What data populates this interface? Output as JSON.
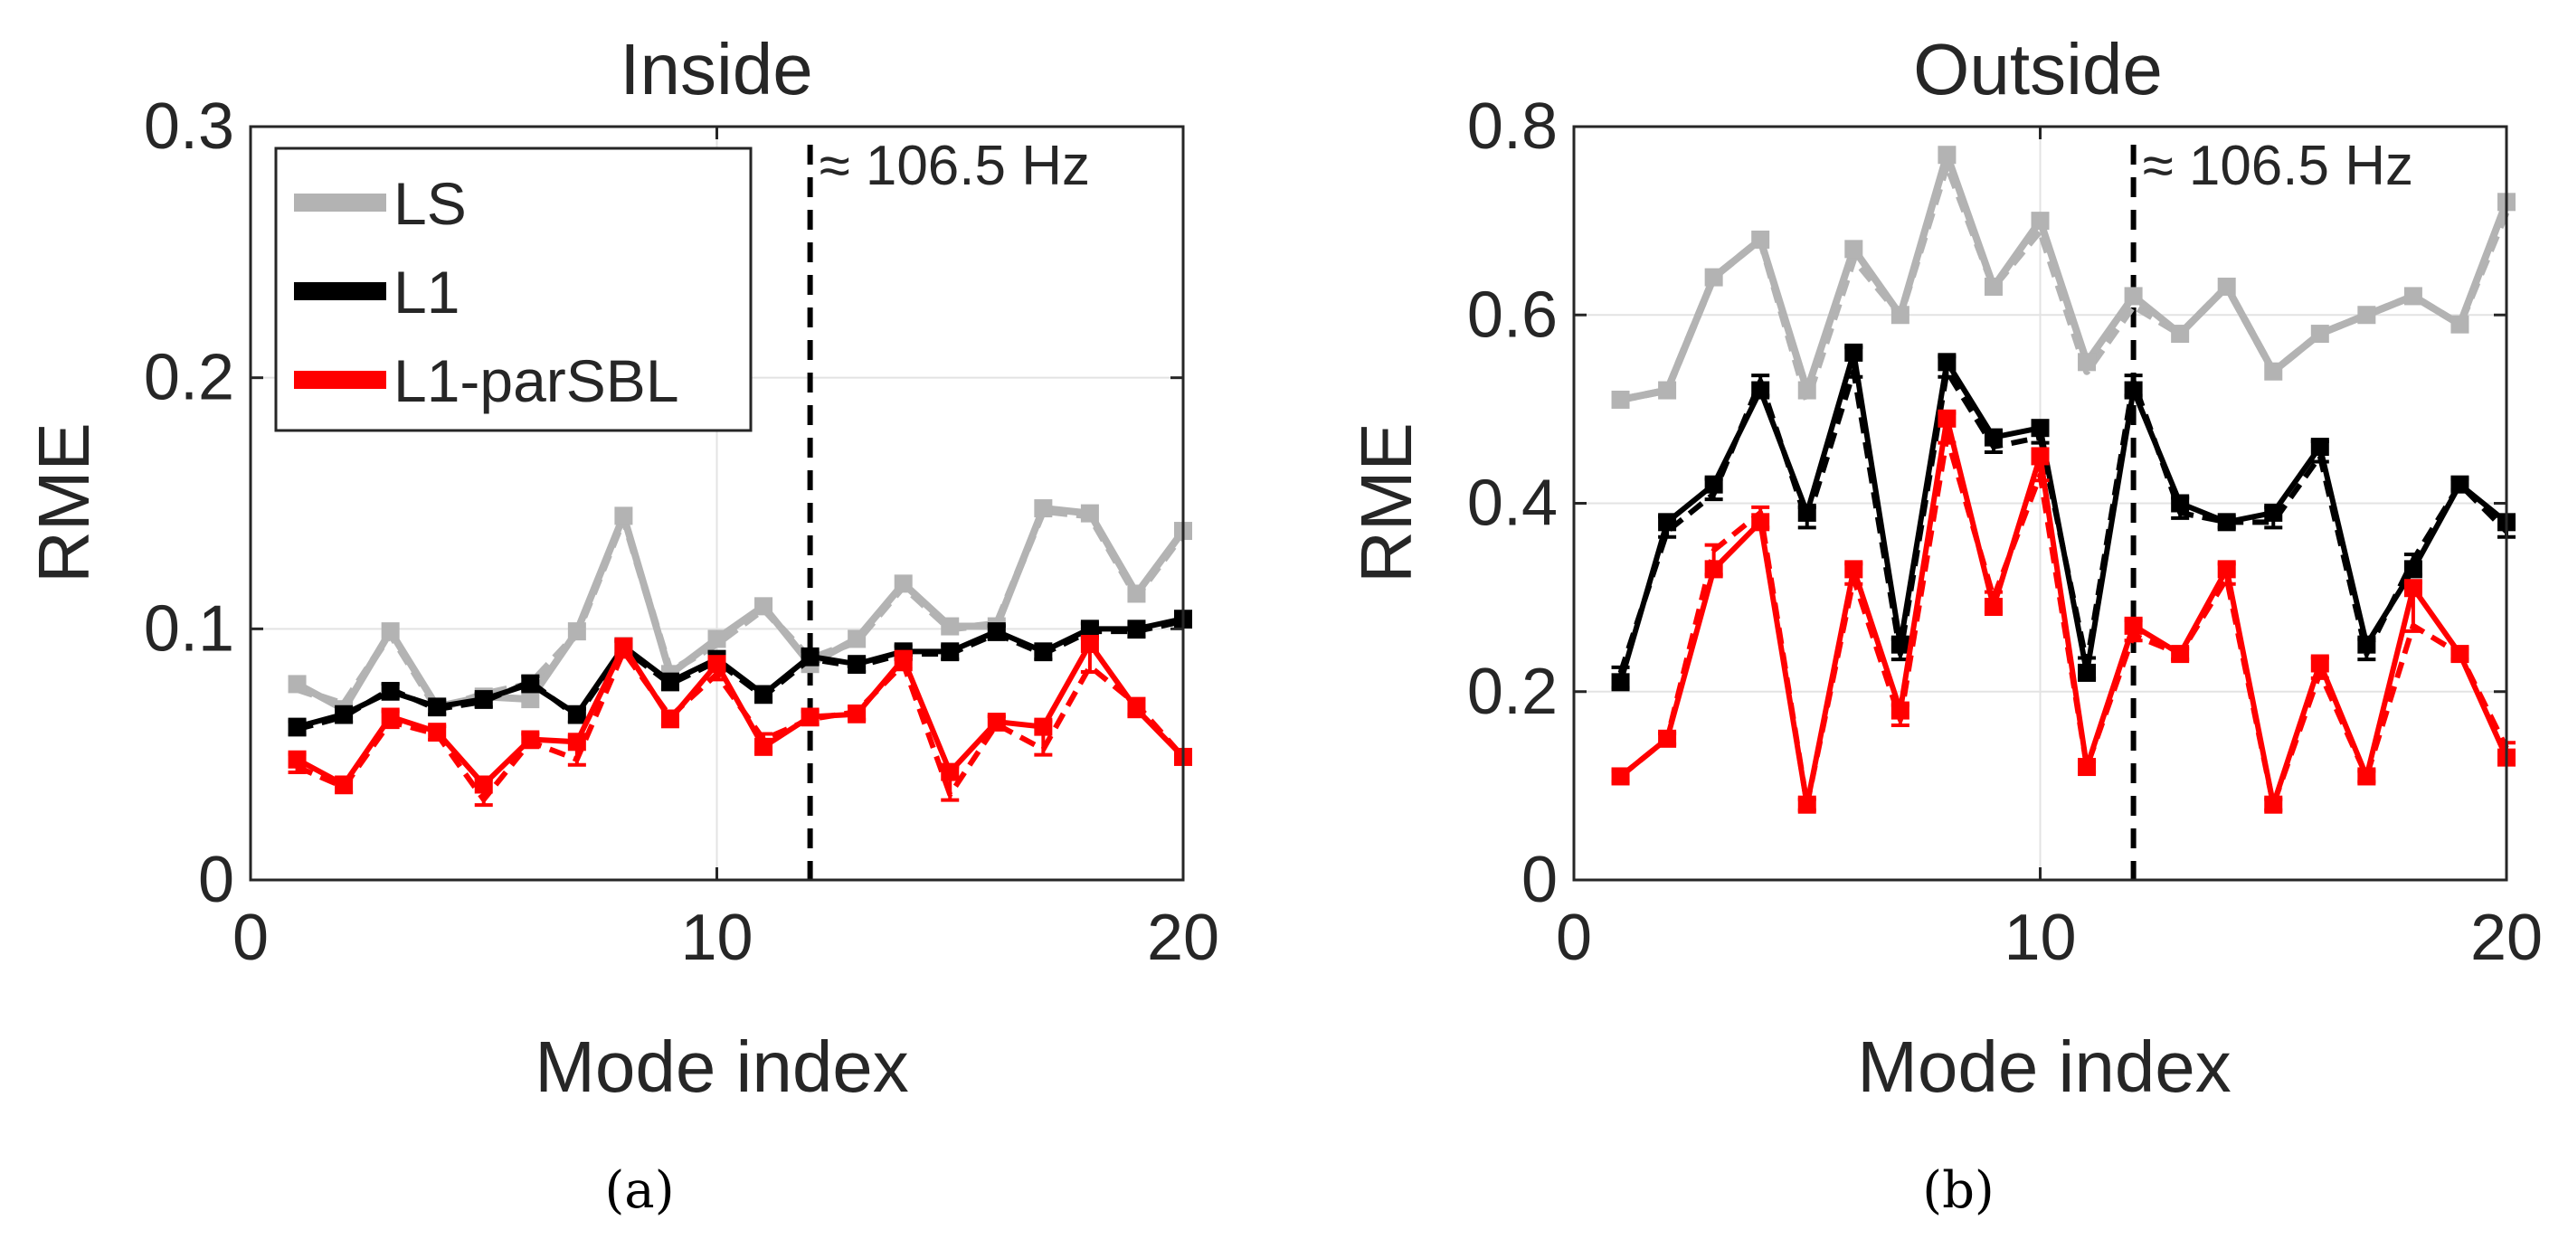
{
  "chart_data": [
    {
      "type": "line",
      "title": "Inside",
      "xlabel": "Mode index",
      "ylabel": "RME",
      "xlim": [
        0,
        20
      ],
      "ylim": [
        0,
        0.3
      ],
      "xticks": [
        0,
        10,
        20
      ],
      "xtick_labels": [
        "0",
        "10",
        "20"
      ],
      "yticks": [
        0,
        0.1,
        0.2,
        0.3
      ],
      "ytick_labels": [
        "0",
        "0.1",
        "0.2",
        "0.3"
      ],
      "grid": true,
      "legend": {
        "placement": "top-left",
        "entries": [
          "LS",
          "L1",
          "L1-parSBL"
        ]
      },
      "annotation": {
        "x": 12,
        "text": "≈ 106.5 Hz"
      },
      "caption": "(a)",
      "x": [
        1,
        2,
        3,
        4,
        5,
        6,
        7,
        8,
        9,
        10,
        11,
        12,
        13,
        14,
        15,
        16,
        17,
        18,
        19,
        20
      ],
      "series": [
        {
          "name": "LS",
          "color": "#b3b3b3",
          "values": [
            0.078,
            0.068,
            0.099,
            0.069,
            0.073,
            0.072,
            0.099,
            0.145,
            0.082,
            0.096,
            0.109,
            0.086,
            0.096,
            0.118,
            0.101,
            0.101,
            0.148,
            0.146,
            0.114,
            0.139
          ],
          "dashed_values": [
            0.076,
            0.07,
            0.098,
            0.068,
            0.074,
            0.078,
            0.098,
            0.144,
            0.083,
            0.094,
            0.108,
            0.088,
            0.095,
            0.117,
            0.1,
            0.102,
            0.147,
            0.145,
            0.113,
            0.138
          ]
        },
        {
          "name": "L1",
          "color": "#000000",
          "values": [
            0.061,
            0.066,
            0.075,
            0.069,
            0.072,
            0.078,
            0.066,
            0.093,
            0.079,
            0.088,
            0.074,
            0.089,
            0.086,
            0.091,
            0.091,
            0.099,
            0.091,
            0.1,
            0.1,
            0.104
          ],
          "dashed_values": [
            0.06,
            0.065,
            0.076,
            0.068,
            0.071,
            0.079,
            0.065,
            0.092,
            0.078,
            0.087,
            0.073,
            0.088,
            0.085,
            0.09,
            0.09,
            0.098,
            0.09,
            0.099,
            0.099,
            0.103
          ]
        },
        {
          "name": "L1-parSBL",
          "color": "#ff0000",
          "values": [
            0.048,
            0.038,
            0.065,
            0.059,
            0.038,
            0.056,
            0.055,
            0.093,
            0.064,
            0.086,
            0.053,
            0.065,
            0.066,
            0.088,
            0.043,
            0.063,
            0.061,
            0.094,
            0.068,
            0.049
          ],
          "dashed_values": [
            0.045,
            0.037,
            0.063,
            0.058,
            0.032,
            0.055,
            0.048,
            0.091,
            0.065,
            0.082,
            0.056,
            0.064,
            0.067,
            0.086,
            0.034,
            0.062,
            0.052,
            0.085,
            0.07,
            0.049
          ]
        }
      ]
    },
    {
      "type": "line",
      "title": "Outside",
      "xlabel": "Mode index",
      "ylabel": "RME",
      "xlim": [
        0,
        20
      ],
      "ylim": [
        0,
        0.8
      ],
      "xticks": [
        0,
        10,
        20
      ],
      "xtick_labels": [
        "0",
        "10",
        "20"
      ],
      "yticks": [
        0,
        0.2,
        0.4,
        0.6,
        0.8
      ],
      "ytick_labels": [
        "0",
        "0.2",
        "0.4",
        "0.6",
        "0.8"
      ],
      "grid": true,
      "legend": null,
      "annotation": {
        "x": 12,
        "text": "≈ 106.5 Hz"
      },
      "caption": "(b)",
      "x": [
        1,
        2,
        3,
        4,
        5,
        6,
        7,
        8,
        9,
        10,
        11,
        12,
        13,
        14,
        15,
        16,
        17,
        18,
        19,
        20
      ],
      "series": [
        {
          "name": "LS",
          "color": "#b3b3b3",
          "values": [
            0.51,
            0.52,
            0.64,
            0.68,
            0.52,
            0.67,
            0.6,
            0.77,
            0.63,
            0.7,
            0.55,
            0.62,
            0.58,
            0.63,
            0.54,
            0.58,
            0.6,
            0.62,
            0.59,
            0.72
          ],
          "dashed_values": [
            0.51,
            0.52,
            0.64,
            0.68,
            0.51,
            0.66,
            0.6,
            0.76,
            0.63,
            0.69,
            0.54,
            0.61,
            0.58,
            0.63,
            0.54,
            0.58,
            0.6,
            0.62,
            0.59,
            0.71
          ]
        },
        {
          "name": "L1",
          "color": "#000000",
          "values": [
            0.21,
            0.38,
            0.42,
            0.52,
            0.39,
            0.56,
            0.25,
            0.55,
            0.47,
            0.48,
            0.22,
            0.52,
            0.4,
            0.38,
            0.39,
            0.46,
            0.25,
            0.33,
            0.42,
            0.38
          ],
          "dashed_values": [
            0.22,
            0.37,
            0.41,
            0.53,
            0.38,
            0.54,
            0.24,
            0.54,
            0.46,
            0.47,
            0.23,
            0.53,
            0.39,
            0.38,
            0.38,
            0.45,
            0.24,
            0.34,
            0.42,
            0.37
          ]
        },
        {
          "name": "L1-parSBL",
          "color": "#ff0000",
          "values": [
            0.11,
            0.15,
            0.33,
            0.38,
            0.08,
            0.33,
            0.18,
            0.49,
            0.29,
            0.45,
            0.12,
            0.27,
            0.24,
            0.33,
            0.08,
            0.23,
            0.11,
            0.31,
            0.24,
            0.13
          ],
          "dashed_values": [
            0.11,
            0.15,
            0.35,
            0.39,
            0.08,
            0.32,
            0.17,
            0.47,
            0.3,
            0.43,
            0.12,
            0.26,
            0.24,
            0.32,
            0.08,
            0.22,
            0.11,
            0.27,
            0.24,
            0.14
          ]
        }
      ]
    }
  ]
}
